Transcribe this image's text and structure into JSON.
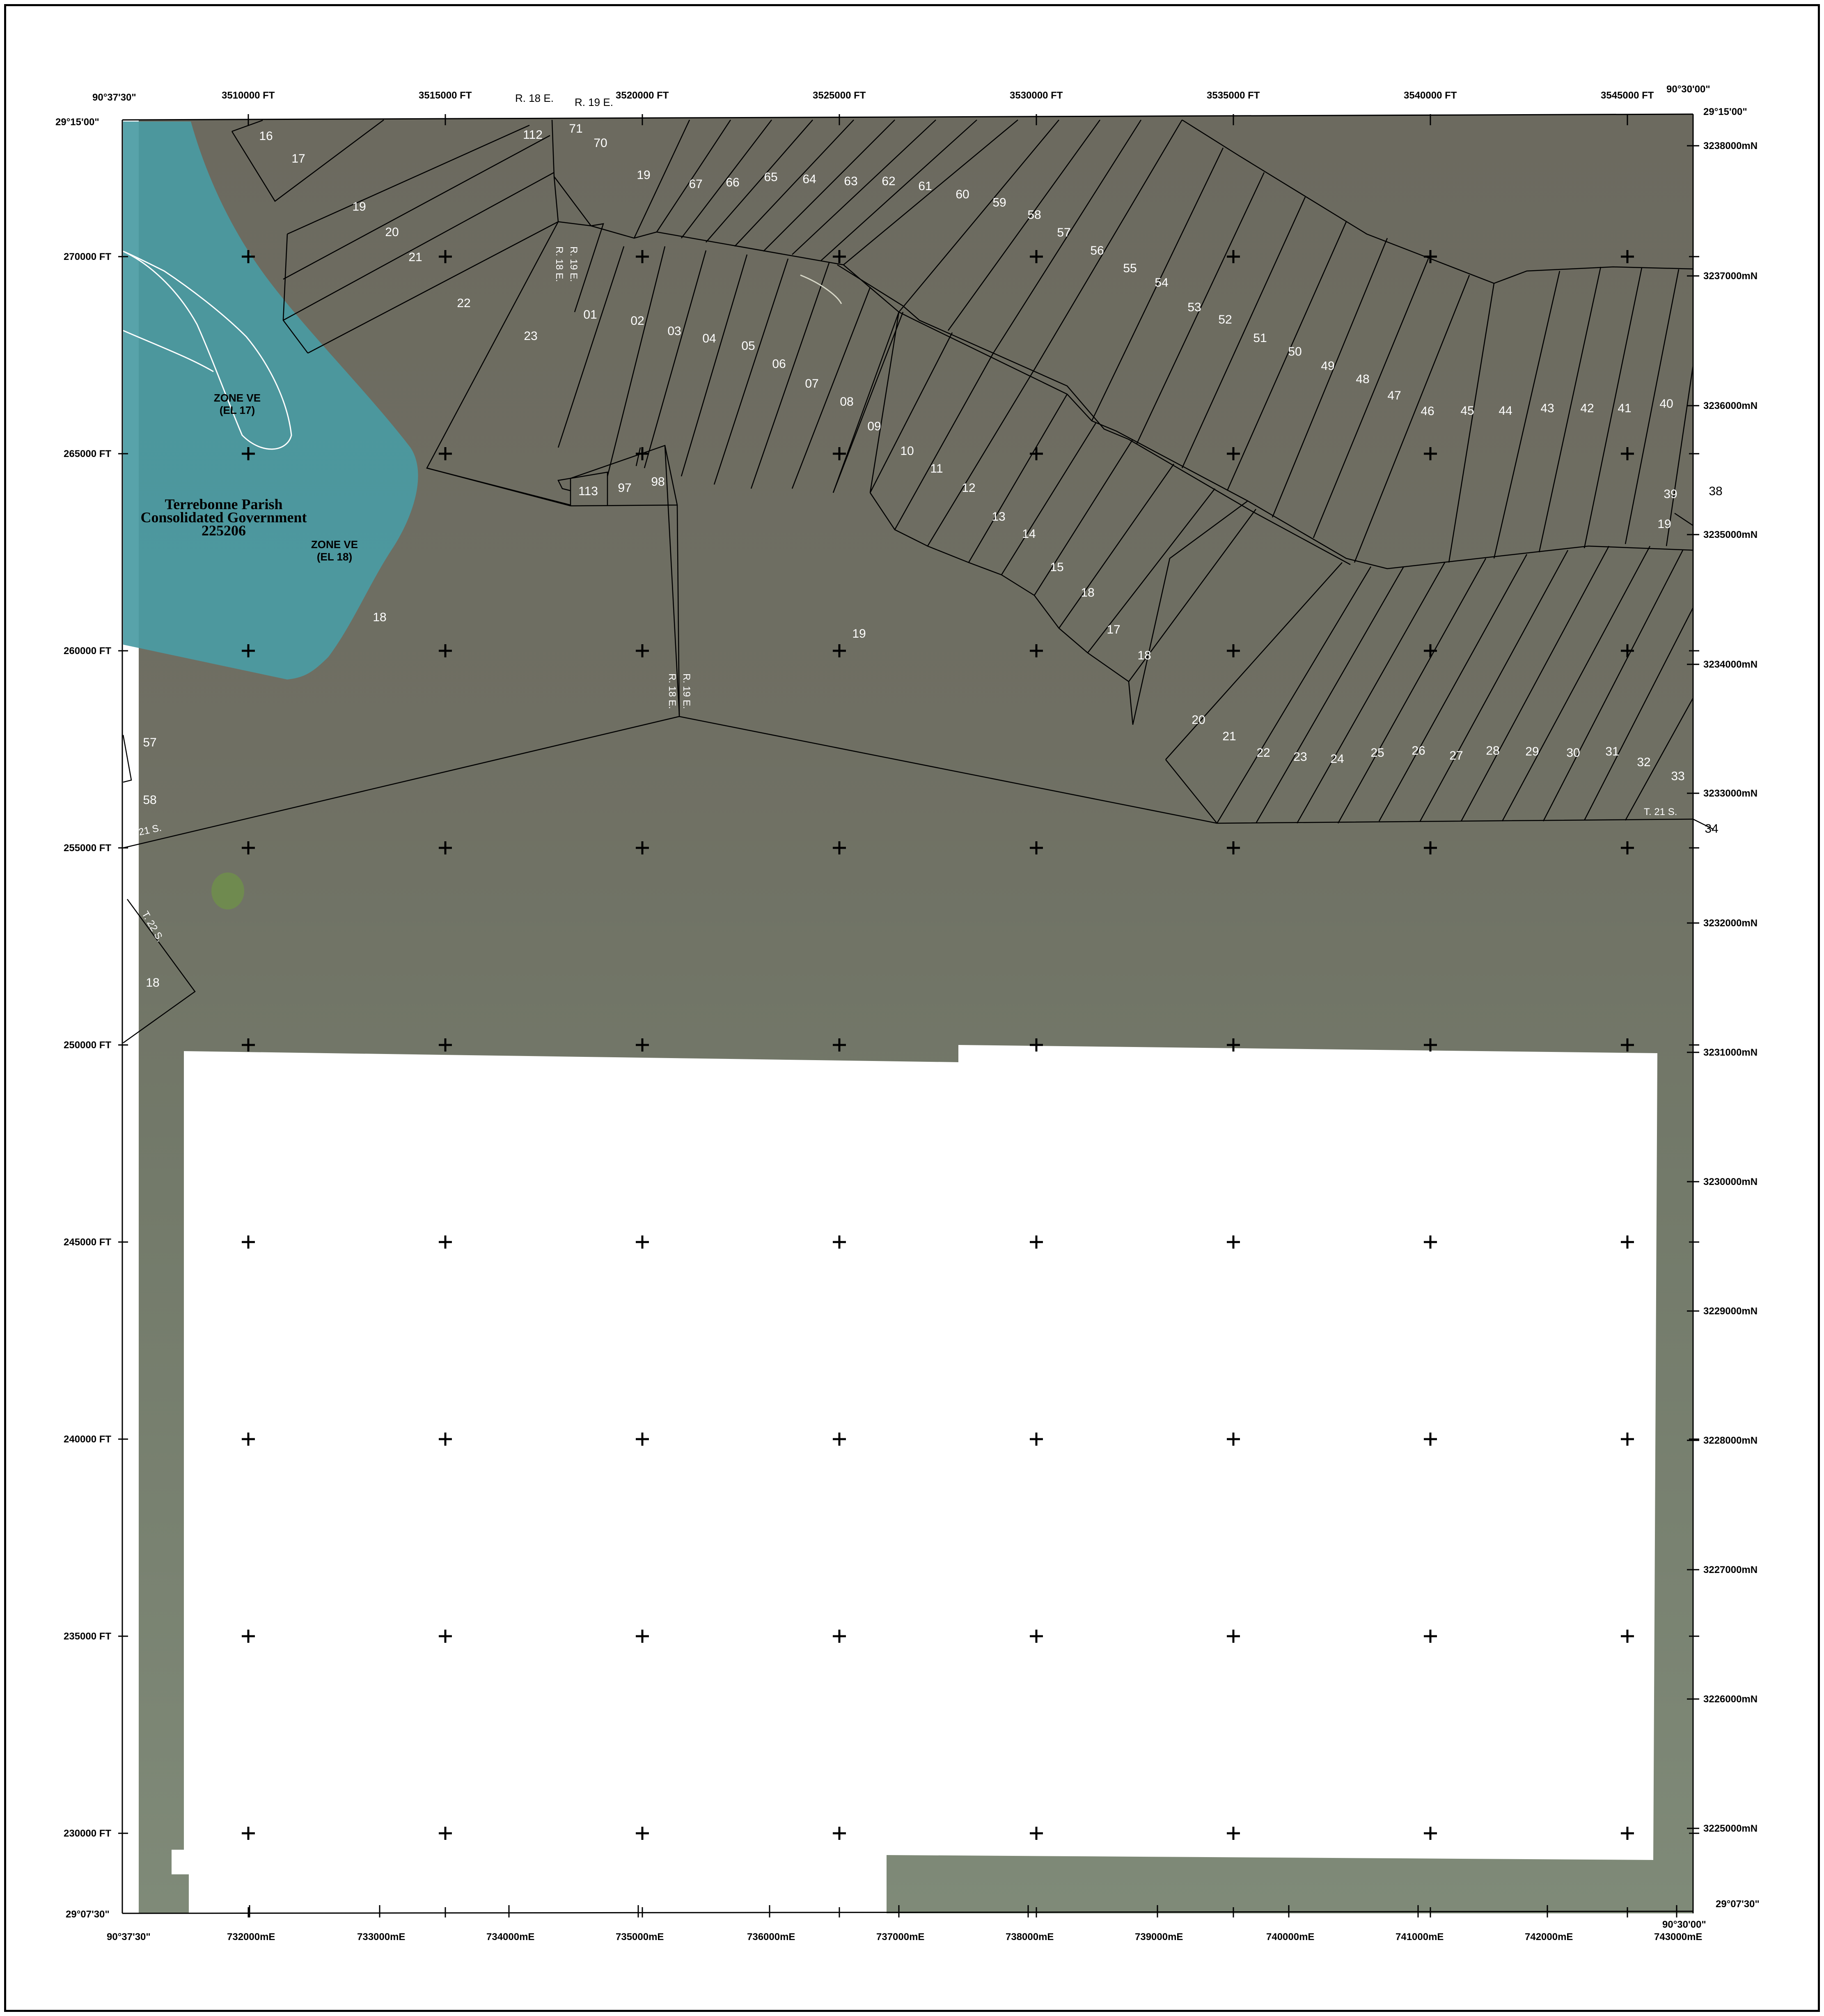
{
  "colors": {
    "photo_base": "#6e6e63",
    "photo_light": "#7d8574",
    "flood_zone": "#4a9ba3",
    "blank": "#ffffff",
    "frame": "#000000"
  },
  "corners": {
    "top_left_lon": "90°37'30\"",
    "top_left_lat": "29°15'00\"",
    "top_right_lon": "90°30'00\"",
    "top_right_lat": "29°15'00\"",
    "bottom_left_lat": "29°07'30\"",
    "bottom_left_lon": "90°37'30\"",
    "bottom_right_lat": "29°07'30\"",
    "bottom_right_lon": "90°30'00\""
  },
  "easting_labels": [
    "3510000 FT",
    "3515000 FT",
    "3520000 FT",
    "3525000 FT",
    "3530000 FT",
    "3535000 FT",
    "3540000 FT",
    "3545000 FT"
  ],
  "northing_labels": [
    "270000 FT",
    "265000 FT",
    "260000 FT",
    "255000 FT",
    "250000 FT",
    "245000 FT",
    "240000 FT",
    "235000 FT",
    "230000 FT"
  ],
  "utm_north_labels": [
    "3238000mN",
    "3237000mN",
    "3236000mN",
    "3235000mN",
    "3234000mN",
    "3233000mN",
    "3232000mN",
    "3231000mN",
    "3230000mN",
    "3229000mN",
    "3228000mN",
    "3227000mN",
    "3226000mN",
    "3225000mN"
  ],
  "utm_east_labels": [
    "732000mE",
    "733000mE",
    "734000mE",
    "735000mE",
    "736000mE",
    "737000mE",
    "738000mE",
    "739000mE",
    "740000mE",
    "741000mE",
    "742000mE",
    "743000mE"
  ],
  "zones": {
    "zone1_name": "ZONE VE",
    "zone1_el": "(EL 17)",
    "zone2_name": "ZONE VE",
    "zone2_el": "(EL 18)"
  },
  "community": {
    "line1": "Terrebonne Parish",
    "line2": "Consolidated Government",
    "line3": "225206"
  },
  "range_labels": {
    "r18e_top": "R. 18 E.",
    "r19e_top": "R. 19 E.",
    "r18e_vert": "R. 18 E.",
    "r19e_vert": "R. 19 E.",
    "r19e_mid": "R. 19 E.",
    "r18e_mid": "R. 18 E.",
    "t21s_left": "T. 21 S.",
    "t21s_right": "T. 21 S.",
    "t22s_left": "T. 22 S."
  },
  "parcels": [
    {
      "label": "16"
    },
    {
      "label": "17"
    },
    {
      "label": "19"
    },
    {
      "label": "20"
    },
    {
      "label": "21"
    },
    {
      "label": "22"
    },
    {
      "label": "23"
    },
    {
      "label": "112"
    },
    {
      "label": "71"
    },
    {
      "label": "70"
    },
    {
      "label": "19"
    },
    {
      "label": "67"
    },
    {
      "label": "66"
    },
    {
      "label": "65"
    },
    {
      "label": "64"
    },
    {
      "label": "63"
    },
    {
      "label": "62"
    },
    {
      "label": "61"
    },
    {
      "label": "60"
    },
    {
      "label": "59"
    },
    {
      "label": "58"
    },
    {
      "label": "57"
    },
    {
      "label": "56"
    },
    {
      "label": "55"
    },
    {
      "label": "54"
    },
    {
      "label": "53"
    },
    {
      "label": "52"
    },
    {
      "label": "51"
    },
    {
      "label": "50"
    },
    {
      "label": "49"
    },
    {
      "label": "48"
    },
    {
      "label": "47"
    },
    {
      "label": "46"
    },
    {
      "label": "45"
    },
    {
      "label": "44"
    },
    {
      "label": "43"
    },
    {
      "label": "42"
    },
    {
      "label": "41"
    },
    {
      "label": "40"
    },
    {
      "label": "01"
    },
    {
      "label": "02"
    },
    {
      "label": "03"
    },
    {
      "label": "04"
    },
    {
      "label": "05"
    },
    {
      "label": "06"
    },
    {
      "label": "07"
    },
    {
      "label": "08"
    },
    {
      "label": "09"
    },
    {
      "label": "10"
    },
    {
      "label": "11"
    },
    {
      "label": "12"
    },
    {
      "label": "13"
    },
    {
      "label": "14"
    },
    {
      "label": "15"
    },
    {
      "label": "18"
    },
    {
      "label": "17"
    },
    {
      "label": "18"
    },
    {
      "label": "113"
    },
    {
      "label": "97"
    },
    {
      "label": "98"
    },
    {
      "label": "39"
    },
    {
      "label": "19"
    },
    {
      "label": "18"
    },
    {
      "label": "19"
    },
    {
      "label": "20"
    },
    {
      "label": "21"
    },
    {
      "label": "22"
    },
    {
      "label": "23"
    },
    {
      "label": "24"
    },
    {
      "label": "25"
    },
    {
      "label": "26"
    },
    {
      "label": "27"
    },
    {
      "label": "28"
    },
    {
      "label": "29"
    },
    {
      "label": "30"
    },
    {
      "label": "31"
    },
    {
      "label": "32"
    },
    {
      "label": "33"
    },
    {
      "label": "57"
    },
    {
      "label": "58"
    },
    {
      "label": "18"
    }
  ],
  "external_labels": [
    "38",
    "34"
  ]
}
